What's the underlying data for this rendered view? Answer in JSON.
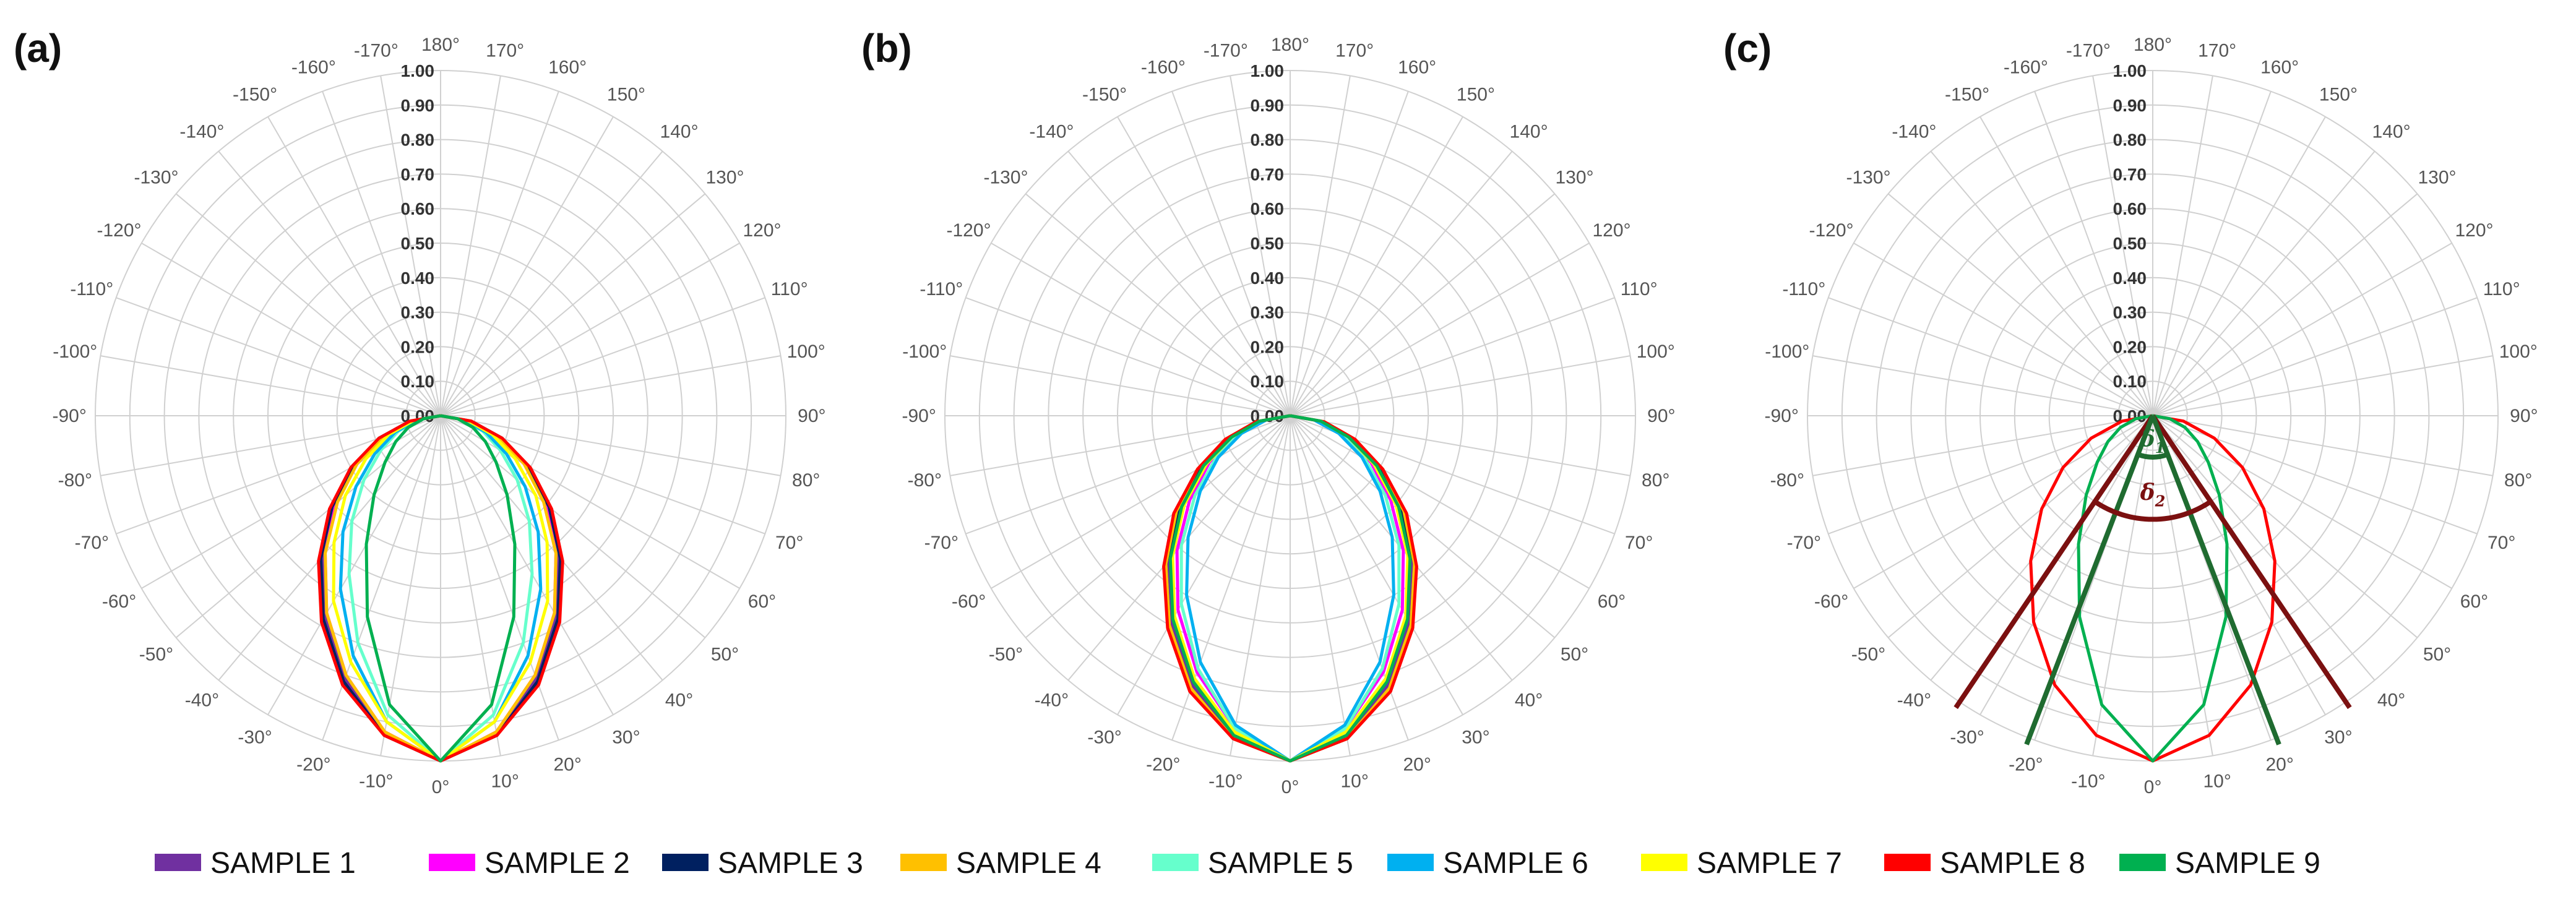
{
  "legend_items": [
    {
      "label": "SAMPLE 1",
      "color": "#7030A0"
    },
    {
      "label": "SAMPLE 2",
      "color": "#FF00FF"
    },
    {
      "label": "SAMPLE 3",
      "color": "#002060"
    },
    {
      "label": "SAMPLE 4",
      "color": "#FFC000"
    },
    {
      "label": "SAMPLE 5",
      "color": "#66FFCC"
    },
    {
      "label": "SAMPLE 6",
      "color": "#00B0F0"
    },
    {
      "label": "SAMPLE 7",
      "color": "#FFFF00"
    },
    {
      "label": "SAMPLE 8",
      "color": "#FF0000"
    },
    {
      "label": "SAMPLE 9",
      "color": "#00B050"
    }
  ],
  "chart_data": [
    {
      "type": "polar-line",
      "panel_label": "(a)",
      "radial_ticks": [
        "0.00",
        "0.10",
        "0.20",
        "0.30",
        "0.40",
        "0.50",
        "0.60",
        "0.70",
        "0.80",
        "0.90",
        "1.00"
      ],
      "rlim": [
        0,
        1
      ],
      "angle_labels": [
        "0°",
        "10°",
        "20°",
        "30°",
        "40°",
        "50°",
        "60°",
        "70°",
        "80°",
        "90°",
        "100°",
        "110°",
        "120°",
        "130°",
        "140°",
        "150°",
        "160°",
        "170°",
        "180°",
        "-170°",
        "-160°",
        "-150°",
        "-140°",
        "-130°",
        "-120°",
        "-110°",
        "-100°",
        "-90°",
        "-80°",
        "-70°",
        "-60°",
        "-50°",
        "-40°",
        "-30°",
        "-20°",
        "-10°"
      ],
      "theta_deg": [
        -90,
        -80,
        -70,
        -60,
        -50,
        -40,
        -30,
        -20,
        -10,
        0,
        10,
        20,
        30,
        40,
        50,
        60,
        70,
        80,
        90
      ],
      "series": [
        {
          "name": "SAMPLE 1",
          "values": [
            0,
            0.09,
            0.18,
            0.28,
            0.4,
            0.53,
            0.67,
            0.81,
            0.93,
            1.0,
            0.93,
            0.81,
            0.67,
            0.53,
            0.4,
            0.28,
            0.18,
            0.09,
            0
          ]
        },
        {
          "name": "SAMPLE 2",
          "values": [
            0,
            0.09,
            0.18,
            0.28,
            0.4,
            0.52,
            0.66,
            0.8,
            0.93,
            1.0,
            0.93,
            0.8,
            0.66,
            0.52,
            0.4,
            0.28,
            0.18,
            0.09,
            0
          ]
        },
        {
          "name": "SAMPLE 3",
          "values": [
            0,
            0.09,
            0.19,
            0.29,
            0.41,
            0.54,
            0.68,
            0.82,
            0.94,
            1.0,
            0.94,
            0.82,
            0.68,
            0.54,
            0.41,
            0.29,
            0.19,
            0.09,
            0
          ]
        },
        {
          "name": "SAMPLE 4",
          "values": [
            0,
            0.09,
            0.18,
            0.28,
            0.39,
            0.52,
            0.66,
            0.8,
            0.93,
            1.0,
            0.93,
            0.8,
            0.66,
            0.52,
            0.39,
            0.28,
            0.18,
            0.09,
            0
          ]
        },
        {
          "name": "SAMPLE 5",
          "values": [
            0,
            0.06,
            0.13,
            0.2,
            0.29,
            0.4,
            0.53,
            0.7,
            0.88,
            1.0,
            0.88,
            0.7,
            0.53,
            0.4,
            0.29,
            0.2,
            0.13,
            0.06,
            0
          ]
        },
        {
          "name": "SAMPLE 6",
          "values": [
            0,
            0.07,
            0.14,
            0.22,
            0.32,
            0.44,
            0.58,
            0.74,
            0.9,
            1.0,
            0.9,
            0.74,
            0.58,
            0.44,
            0.32,
            0.22,
            0.14,
            0.07,
            0
          ]
        },
        {
          "name": "SAMPLE 7",
          "values": [
            0,
            0.08,
            0.16,
            0.25,
            0.36,
            0.48,
            0.62,
            0.76,
            0.9,
            1.0,
            0.9,
            0.76,
            0.62,
            0.48,
            0.36,
            0.25,
            0.16,
            0.08,
            0
          ]
        },
        {
          "name": "SAMPLE 8",
          "values": [
            0,
            0.09,
            0.19,
            0.3,
            0.42,
            0.55,
            0.69,
            0.83,
            0.94,
            1.0,
            0.94,
            0.83,
            0.69,
            0.55,
            0.42,
            0.3,
            0.19,
            0.09,
            0
          ]
        },
        {
          "name": "SAMPLE 9",
          "values": [
            0,
            0.05,
            0.1,
            0.15,
            0.21,
            0.3,
            0.43,
            0.62,
            0.85,
            1.0,
            0.85,
            0.62,
            0.43,
            0.3,
            0.21,
            0.15,
            0.1,
            0.05,
            0
          ]
        }
      ]
    },
    {
      "type": "polar-line",
      "panel_label": "(b)",
      "radial_ticks": [
        "0.00",
        "0.10",
        "0.20",
        "0.30",
        "0.40",
        "0.50",
        "0.60",
        "0.70",
        "0.80",
        "0.90",
        "1.00"
      ],
      "rlim": [
        0,
        1
      ],
      "angle_labels": [
        "0°",
        "10°",
        "20°",
        "30°",
        "40°",
        "50°",
        "60°",
        "70°",
        "80°",
        "90°",
        "100°",
        "110°",
        "120°",
        "130°",
        "140°",
        "150°",
        "160°",
        "170°",
        "180°",
        "-170°",
        "-160°",
        "-150°",
        "-140°",
        "-130°",
        "-120°",
        "-110°",
        "-100°",
        "-90°",
        "-80°",
        "-70°",
        "-60°",
        "-50°",
        "-40°",
        "-30°",
        "-20°",
        "-10°"
      ],
      "theta_deg": [
        -90,
        -80,
        -70,
        -60,
        -50,
        -40,
        -30,
        -20,
        -10,
        0,
        10,
        20,
        30,
        40,
        50,
        60,
        70,
        80,
        90
      ],
      "series": [
        {
          "name": "SAMPLE 1",
          "values": [
            0,
            0.09,
            0.19,
            0.3,
            0.42,
            0.55,
            0.69,
            0.83,
            0.94,
            1.0,
            0.94,
            0.83,
            0.69,
            0.55,
            0.42,
            0.3,
            0.19,
            0.09,
            0
          ]
        },
        {
          "name": "SAMPLE 2",
          "values": [
            0,
            0.08,
            0.17,
            0.27,
            0.38,
            0.51,
            0.65,
            0.79,
            0.92,
            1.0,
            0.92,
            0.79,
            0.65,
            0.51,
            0.38,
            0.27,
            0.17,
            0.08,
            0
          ]
        },
        {
          "name": "SAMPLE 3",
          "values": [
            0,
            0.09,
            0.19,
            0.3,
            0.42,
            0.56,
            0.7,
            0.84,
            0.95,
            1.0,
            0.95,
            0.84,
            0.7,
            0.56,
            0.42,
            0.3,
            0.19,
            0.09,
            0
          ]
        },
        {
          "name": "SAMPLE 4",
          "values": [
            0,
            0.1,
            0.2,
            0.31,
            0.43,
            0.56,
            0.7,
            0.84,
            0.95,
            1.0,
            0.95,
            0.84,
            0.7,
            0.56,
            0.43,
            0.31,
            0.2,
            0.1,
            0
          ]
        },
        {
          "name": "SAMPLE 5",
          "values": [
            0,
            0.08,
            0.16,
            0.25,
            0.36,
            0.49,
            0.63,
            0.78,
            0.92,
            1.0,
            0.92,
            0.78,
            0.63,
            0.49,
            0.36,
            0.25,
            0.16,
            0.08,
            0
          ]
        },
        {
          "name": "SAMPLE 6",
          "values": [
            0,
            0.07,
            0.15,
            0.24,
            0.34,
            0.46,
            0.6,
            0.76,
            0.91,
            1.0,
            0.91,
            0.76,
            0.6,
            0.46,
            0.34,
            0.24,
            0.15,
            0.07,
            0
          ]
        },
        {
          "name": "SAMPLE 7",
          "values": [
            0,
            0.09,
            0.18,
            0.28,
            0.4,
            0.53,
            0.67,
            0.81,
            0.93,
            1.0,
            0.93,
            0.81,
            0.67,
            0.53,
            0.4,
            0.28,
            0.18,
            0.09,
            0
          ]
        },
        {
          "name": "SAMPLE 8",
          "values": [
            0,
            0.1,
            0.2,
            0.31,
            0.44,
            0.57,
            0.71,
            0.85,
            0.95,
            1.0,
            0.95,
            0.85,
            0.71,
            0.57,
            0.44,
            0.31,
            0.2,
            0.1,
            0
          ]
        },
        {
          "name": "SAMPLE 9",
          "values": [
            0,
            0.09,
            0.18,
            0.29,
            0.41,
            0.54,
            0.68,
            0.82,
            0.94,
            1.0,
            0.94,
            0.82,
            0.68,
            0.54,
            0.41,
            0.29,
            0.18,
            0.09,
            0
          ]
        }
      ]
    },
    {
      "type": "polar-line",
      "panel_label": "(c)",
      "radial_ticks": [
        "0.00",
        "0.10",
        "0.20",
        "0.30",
        "0.40",
        "0.50",
        "0.60",
        "0.70",
        "0.80",
        "0.90",
        "1.00"
      ],
      "rlim": [
        0,
        1
      ],
      "angle_labels": [
        "0°",
        "10°",
        "20°",
        "30°",
        "40°",
        "50°",
        "60°",
        "70°",
        "80°",
        "90°",
        "100°",
        "110°",
        "120°",
        "130°",
        "140°",
        "150°",
        "160°",
        "170°",
        "180°",
        "-170°",
        "-160°",
        "-150°",
        "-140°",
        "-130°",
        "-120°",
        "-110°",
        "-100°",
        "-90°",
        "-80°",
        "-70°",
        "-60°",
        "-50°",
        "-40°",
        "-30°",
        "-20°",
        "-10°"
      ],
      "theta_deg": [
        -90,
        -80,
        -70,
        -60,
        -50,
        -40,
        -30,
        -20,
        -10,
        0,
        10,
        20,
        30,
        40,
        50,
        60,
        70,
        80,
        90
      ],
      "series": [
        {
          "name": "SAMPLE 8",
          "values": [
            0,
            0.09,
            0.19,
            0.3,
            0.42,
            0.55,
            0.69,
            0.83,
            0.94,
            1.0,
            0.94,
            0.83,
            0.69,
            0.55,
            0.42,
            0.3,
            0.19,
            0.09,
            0
          ]
        },
        {
          "name": "SAMPLE 9",
          "values": [
            0,
            0.05,
            0.1,
            0.15,
            0.21,
            0.3,
            0.43,
            0.62,
            0.85,
            1.0,
            0.85,
            0.62,
            0.43,
            0.3,
            0.21,
            0.15,
            0.1,
            0.05,
            0
          ]
        }
      ],
      "annotations": {
        "delta1": {
          "symbol": "δ",
          "subscript": "1",
          "half_angle_deg": 21,
          "color": "#1F6B30"
        },
        "delta2": {
          "symbol": "δ",
          "subscript": "2",
          "half_angle_deg": 34,
          "color": "#7B1010"
        }
      }
    }
  ]
}
